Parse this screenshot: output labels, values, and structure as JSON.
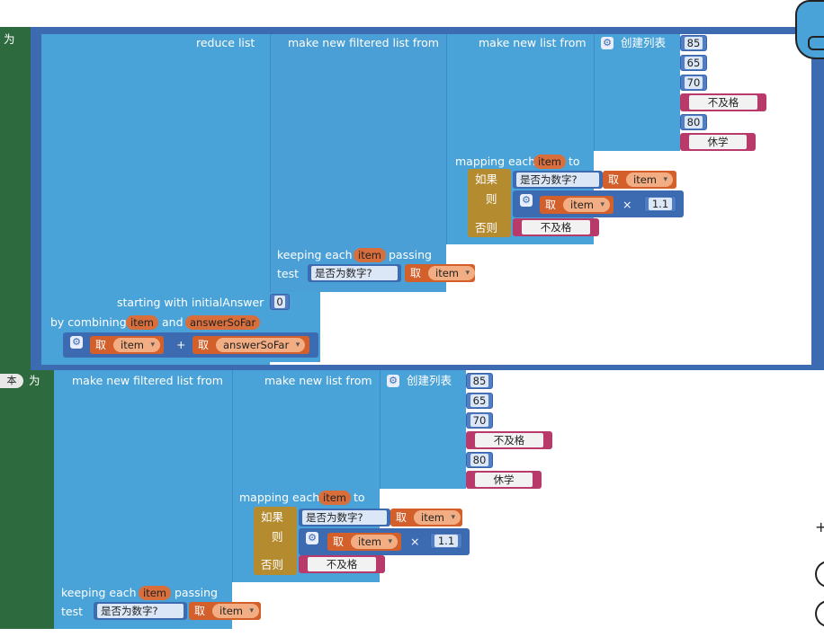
{
  "block1": {
    "var_suffix": "为",
    "reduce_label": "reduce  list",
    "filtered_label": "make new filtered list from",
    "newlist_label": "make new list from",
    "create_list_label": "创建列表",
    "list_items": [
      {
        "type": "number",
        "value": "85"
      },
      {
        "type": "number",
        "value": "65"
      },
      {
        "type": "number",
        "value": "70"
      },
      {
        "type": "string",
        "value": "不及格"
      },
      {
        "type": "number",
        "value": "80"
      },
      {
        "type": "string",
        "value": "休学"
      }
    ],
    "mapping_label": "mapping each",
    "mapping_var": "item",
    "mapping_to": "to",
    "if_label": "如果",
    "then_label": "则",
    "else_label": "否则",
    "isnum_label": "是否为数字?",
    "get_label": "取",
    "item_var": "item",
    "multiply": "×",
    "factor": "1.1",
    "else_value": "不及格",
    "keeping_label": "keeping each",
    "keeping_var": "item",
    "passing_label": "passing",
    "test_label": "test",
    "starting_label": "starting with initialAnswer",
    "initial_value": "0",
    "combining_label": "by combining",
    "combining_var1": "item",
    "and_label": "and",
    "combining_var2": "answerSoFar",
    "plus": "+",
    "answer_var": "answerSoFar"
  },
  "block2": {
    "var_prefix": "本",
    "var_suffix": "为",
    "filtered_label": "make new filtered list from",
    "newlist_label": "make new list from",
    "create_list_label": "创建列表",
    "list_items": [
      {
        "type": "number",
        "value": "85"
      },
      {
        "type": "number",
        "value": "65"
      },
      {
        "type": "number",
        "value": "70"
      },
      {
        "type": "string",
        "value": "不及格"
      },
      {
        "type": "number",
        "value": "80"
      },
      {
        "type": "string",
        "value": "休学"
      }
    ],
    "mapping_label": "mapping each",
    "mapping_var": "item",
    "mapping_to": "to",
    "if_label": "如果",
    "then_label": "则",
    "else_label": "否则",
    "isnum_label": "是否为数字?",
    "get_label": "取",
    "item_var": "item",
    "multiply": "×",
    "factor": "1.1",
    "else_value": "不及格",
    "keeping_label": "keeping each",
    "keeping_var": "item",
    "passing_label": "passing",
    "test_label": "test"
  },
  "colors": {
    "variable_block": "#2d6a3e",
    "list_block": "#4aa3d8",
    "control_block": "#b58b30",
    "math_block": "#3c6bb2",
    "text_block": "#b83a6a",
    "variable_get": "#d35f2b"
  },
  "icons": [
    "gear-icon",
    "trashcan-icon",
    "zoom-in-icon",
    "zoom-out-icon"
  ]
}
